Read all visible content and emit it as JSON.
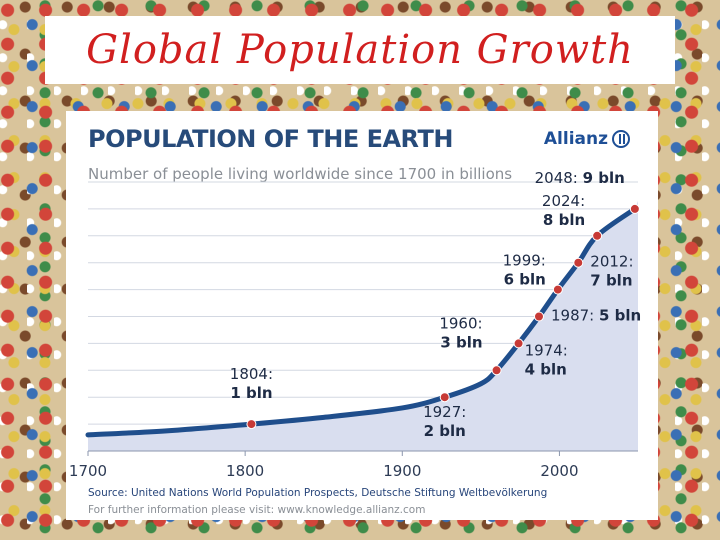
{
  "slide": {
    "title": "Global Population Growth"
  },
  "panel": {
    "heading": "POPULATION OF THE EARTH",
    "subtitle": "Number of people living worldwide since 1700 in billions",
    "brand": "Allianz",
    "source": "Source: United Nations World Population Prospects, Deutsche Stiftung Weltbevölkerung",
    "further_info": "For further information please visit: www.knowledge.allianz.com"
  },
  "colors": {
    "title": "#d11f1f",
    "line": "#1f4e8c",
    "fill": "#d9deef",
    "marker": "#c73a36",
    "heading": "#274b7a"
  },
  "chart_data": {
    "type": "area",
    "title": "POPULATION OF THE EARTH",
    "subtitle": "Number of people living worldwide since 1700 in billions",
    "xlabel": "",
    "ylabel": "",
    "xlim": [
      1700,
      2050
    ],
    "ylim": [
      0,
      10
    ],
    "x_ticks": [
      "1700",
      "1800",
      "1900",
      "2000"
    ],
    "grid": true,
    "curve": {
      "x": [
        1700,
        1750,
        1804,
        1850,
        1900,
        1927,
        1950,
        1960,
        1974,
        1987,
        1999,
        2012,
        2024,
        2048
      ],
      "y": [
        0.6,
        0.75,
        1,
        1.25,
        1.6,
        2,
        2.5,
        3,
        4,
        5,
        6,
        7,
        8,
        9
      ]
    },
    "milestones": [
      {
        "year": 1804,
        "value": 1,
        "label_year": "1804:",
        "label_value": "1 bln"
      },
      {
        "year": 1927,
        "value": 2,
        "label_year": "1927:",
        "label_value": "2 bln"
      },
      {
        "year": 1960,
        "value": 3,
        "label_year": "1960:",
        "label_value": "3 bln"
      },
      {
        "year": 1974,
        "value": 4,
        "label_year": "1974:",
        "label_value": "4 bln"
      },
      {
        "year": 1987,
        "value": 5,
        "label_year": "1987:",
        "label_value": "5 bln"
      },
      {
        "year": 1999,
        "value": 6,
        "label_year": "1999:",
        "label_value": "6 bln"
      },
      {
        "year": 2012,
        "value": 7,
        "label_year": "2012:",
        "label_value": "7 bln"
      },
      {
        "year": 2024,
        "value": 8,
        "label_year": "2024:",
        "label_value": "8 bln"
      },
      {
        "year": 2048,
        "value": 9,
        "label_year": "2048:",
        "label_value": "9 bln"
      }
    ]
  }
}
